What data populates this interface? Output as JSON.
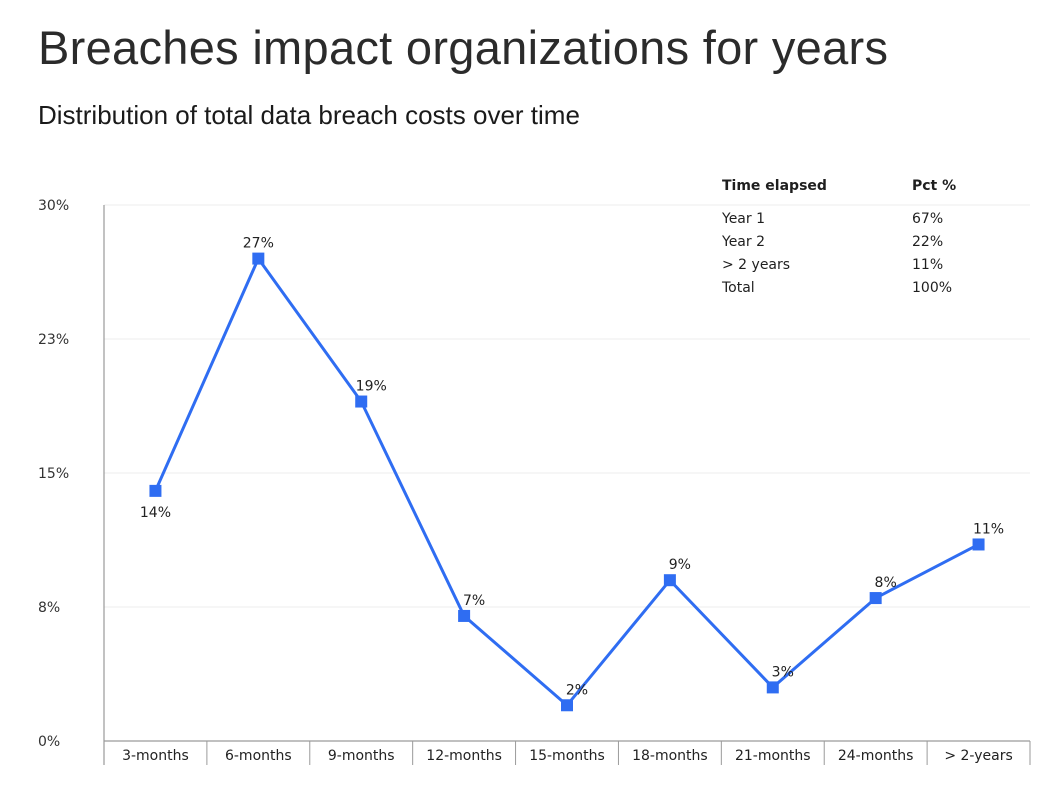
{
  "title": "Breaches impact organizations for years",
  "subtitle": "Distribution of total data breach costs over time",
  "chart_data": {
    "type": "line",
    "categories": [
      "3-months",
      "6-months",
      "9-months",
      "12-months",
      "15-months",
      "18-months",
      "21-months",
      "24-months",
      "> 2-years"
    ],
    "values": [
      14,
      27,
      19,
      7,
      2,
      9,
      3,
      8,
      11
    ],
    "data_labels": [
      "14%",
      "27%",
      "19%",
      "7%",
      "2%",
      "9%",
      "3%",
      "8%",
      "11%"
    ],
    "y_ticks": [
      0,
      7.5,
      15,
      22.5,
      30
    ],
    "y_tick_labels": [
      "0%",
      "8%",
      "15%",
      "23%",
      "30%"
    ],
    "ylim": [
      0,
      30
    ],
    "grid": true,
    "line_color": "#2f6df2"
  },
  "summary_table": {
    "headers": [
      "Time elapsed",
      "Pct %"
    ],
    "rows": [
      [
        "Year 1",
        "67%"
      ],
      [
        "Year 2",
        "22%"
      ],
      [
        "> 2 years",
        "11%"
      ],
      [
        "Total",
        "100%"
      ]
    ]
  }
}
